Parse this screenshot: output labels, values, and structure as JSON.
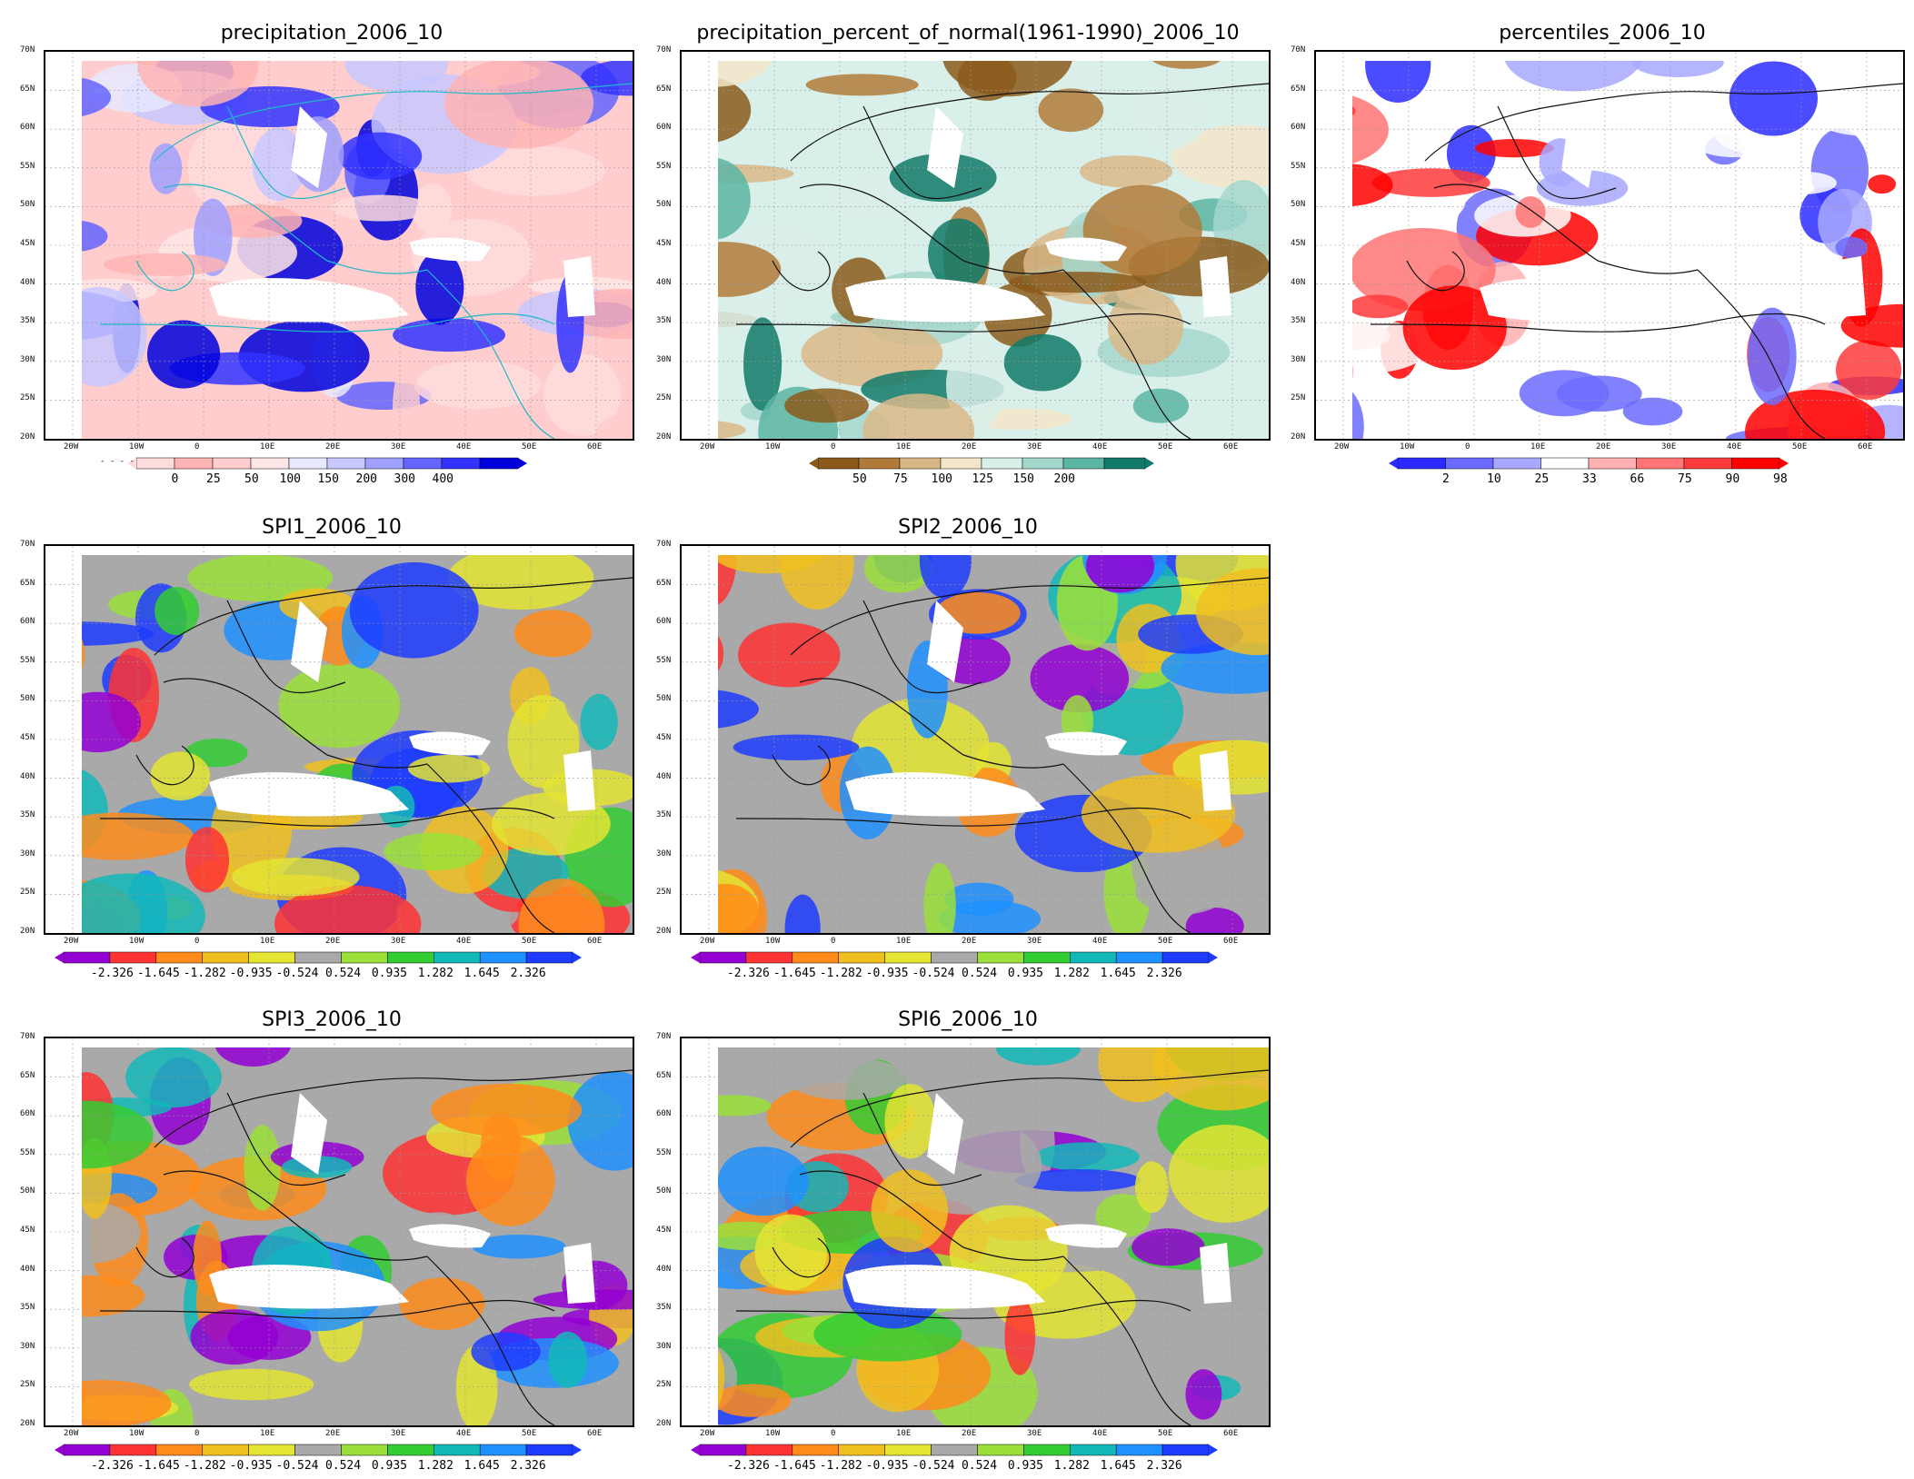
{
  "axes": {
    "lat_labels": [
      "70N",
      "65N",
      "60N",
      "55N",
      "50N",
      "45N",
      "40N",
      "35N",
      "30N",
      "25N",
      "20N"
    ],
    "lon_labels": [
      "20W",
      "10W",
      "0",
      "10E",
      "20E",
      "30E",
      "40E",
      "50E",
      "60E"
    ]
  },
  "palettes": {
    "precip": [
      "#ffdcdc",
      "#ffb4b4",
      "#ffcdcd",
      "#ffe6e6",
      "#e8e8ff",
      "#c8c8ff",
      "#a0a0ff",
      "#6464ff",
      "#3232ff",
      "#0000dc"
    ],
    "pct": [
      "#8b5a1b",
      "#b07b3a",
      "#d9b888",
      "#f2e6c9",
      "#d9efe9",
      "#a4d7cc",
      "#5ab5a3",
      "#117a6a"
    ],
    "perc": [
      "#2b2bff",
      "#6b6bff",
      "#a8a8ff",
      "#ffffff",
      "#ffb0b0",
      "#ff7474",
      "#ff3a3a",
      "#ff0000"
    ],
    "spi": [
      "#9400d3",
      "#ff3333",
      "#ff8c1a",
      "#f0c020",
      "#e4e432",
      "#a9a9a9",
      "#9be03a",
      "#33cc33",
      "#12b8b8",
      "#1e90ff",
      "#1e3cff"
    ]
  },
  "panels": [
    {
      "title": "precipitation_2006_10",
      "palette": "precip",
      "colorbar_labels": [
        "0",
        "25",
        "50",
        "100",
        "150",
        "200",
        "300",
        "400"
      ],
      "colorbar_prefix": "- - - -"
    },
    {
      "title": "precipitation_percent_of_normal(1961-1990)_2006_10",
      "palette": "pct",
      "colorbar_labels": [
        "50",
        "75",
        "100",
        "125",
        "150",
        "200"
      ]
    },
    {
      "title": "percentiles_2006_10",
      "palette": "perc",
      "colorbar_labels": [
        "2",
        "10",
        "25",
        "33",
        "66",
        "75",
        "90",
        "98"
      ]
    },
    {
      "title": "SPI1_2006_10",
      "palette": "spi",
      "colorbar_labels": [
        "-2.326",
        "-1.645",
        "-1.282",
        "-0.935",
        "-0.524",
        "0.524",
        "0.935",
        "1.282",
        "1.645",
        "2.326"
      ]
    },
    {
      "title": "SPI2_2006_10",
      "palette": "spi",
      "colorbar_labels": [
        "-2.326",
        "-1.645",
        "-1.282",
        "-0.935",
        "-0.524",
        "0.524",
        "0.935",
        "1.282",
        "1.645",
        "2.326"
      ]
    },
    {
      "title": "SPI3_2006_10",
      "palette": "spi",
      "colorbar_labels": [
        "-2.326",
        "-1.645",
        "-1.282",
        "-0.935",
        "-0.524",
        "0.524",
        "0.935",
        "1.282",
        "1.645",
        "2.326"
      ]
    },
    {
      "title": "SPI6_2006_10",
      "palette": "spi",
      "colorbar_labels": [
        "-2.326",
        "-1.645",
        "-1.282",
        "-0.935",
        "-0.524",
        "0.524",
        "0.935",
        "1.282",
        "1.645",
        "2.326"
      ]
    }
  ]
}
